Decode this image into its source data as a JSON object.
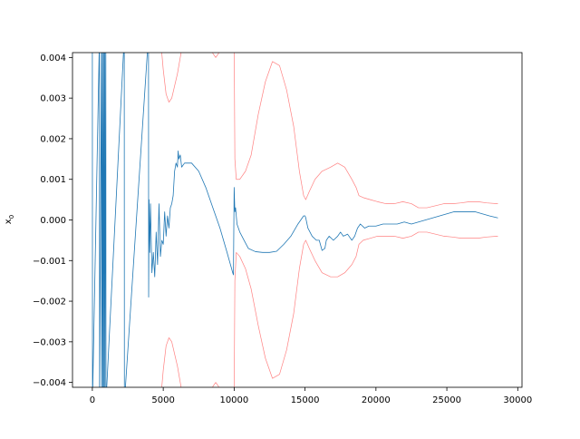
{
  "figure": {
    "background": "#ffffff"
  },
  "chart_data": {
    "type": "line",
    "title": "",
    "xlabel": "",
    "ylabel": "x",
    "ylabel_subscript": "0",
    "xlim": [
      -1400,
      30300
    ],
    "ylim": [
      -0.00412,
      0.00412
    ],
    "xticks": [
      0,
      5000,
      10000,
      15000,
      20000,
      25000,
      30000
    ],
    "xtick_labels": [
      "0",
      "5000",
      "10000",
      "15000",
      "20000",
      "25000",
      "30000"
    ],
    "yticks": [
      -0.004,
      -0.003,
      -0.002,
      -0.001,
      0.0,
      0.001,
      0.002,
      0.003,
      0.004
    ],
    "ytick_labels": [
      "−0.004",
      "−0.003",
      "−0.002",
      "−0.001",
      "0.000",
      "0.001",
      "0.002",
      "0.003",
      "0.004"
    ],
    "grid": false,
    "legend": "none",
    "series": [
      {
        "role": "estimate",
        "color": "#1f77b4",
        "points": [
          [
            0,
            0.0045
          ],
          [
            10,
            -0.0045
          ],
          [
            500,
            0.0045
          ],
          [
            510,
            -0.0045
          ],
          [
            650,
            0.0045
          ],
          [
            660,
            -0.0045
          ],
          [
            720,
            0.0045
          ],
          [
            730,
            -0.0045
          ],
          [
            800,
            0.0045
          ],
          [
            810,
            -0.0045
          ],
          [
            870,
            0.0045
          ],
          [
            880,
            -0.0045
          ],
          [
            950,
            0.0045
          ],
          [
            960,
            -0.0045
          ],
          [
            2250,
            0.0045
          ],
          [
            2260,
            -0.0045
          ],
          [
            3950,
            0.0045
          ],
          [
            3960,
            0.0045
          ],
          [
            3970,
            -0.0019
          ],
          [
            4000,
            0.0005
          ],
          [
            4050,
            -0.0008
          ],
          [
            4100,
            0.0004
          ],
          [
            4200,
            -0.0013
          ],
          [
            4300,
            -0.0008
          ],
          [
            4400,
            -0.0014
          ],
          [
            4500,
            -0.0003
          ],
          [
            4600,
            -0.0011
          ],
          [
            4700,
            0.0004
          ],
          [
            4800,
            -0.0009
          ],
          [
            4900,
            -0.0005
          ],
          [
            5000,
            -0.0006
          ],
          [
            5100,
            0.0002
          ],
          [
            5200,
            -0.0004
          ],
          [
            5300,
            0.0001
          ],
          [
            5400,
            -0.0002
          ],
          [
            5500,
            0.0003
          ],
          [
            5600,
            0.0004
          ],
          [
            5700,
            0.0006
          ],
          [
            5800,
            0.0012
          ],
          [
            5900,
            0.0014
          ],
          [
            6000,
            0.0013
          ],
          [
            6050,
            0.0017
          ],
          [
            6100,
            0.0015
          ],
          [
            6200,
            0.0016
          ],
          [
            6300,
            0.0013
          ],
          [
            6500,
            0.0014
          ],
          [
            7000,
            0.0014
          ],
          [
            7500,
            0.0012
          ],
          [
            8000,
            0.0008
          ],
          [
            8500,
            0.0003
          ],
          [
            9000,
            -0.0002
          ],
          [
            9500,
            -0.0008
          ],
          [
            9900,
            -0.0013
          ],
          [
            9950,
            -0.00135
          ],
          [
            10000,
            0.0008
          ],
          [
            10050,
            0.0002
          ],
          [
            10100,
            0.0003
          ],
          [
            10200,
            -0.0001
          ],
          [
            10400,
            -0.0003
          ],
          [
            10700,
            -0.0005
          ],
          [
            11000,
            -0.0007
          ],
          [
            11500,
            -0.00078
          ],
          [
            12000,
            -0.0008
          ],
          [
            12500,
            -0.0008
          ],
          [
            13000,
            -0.00077
          ],
          [
            13500,
            -0.0006
          ],
          [
            14000,
            -0.0004
          ],
          [
            14500,
            -0.0001
          ],
          [
            14900,
            0.0001
          ],
          [
            15000,
            0.0001
          ],
          [
            15050,
            5e-05
          ],
          [
            15200,
            -0.0002
          ],
          [
            15500,
            -0.0004
          ],
          [
            15800,
            -0.0005
          ],
          [
            16000,
            -0.0005
          ],
          [
            16200,
            -0.00075
          ],
          [
            16400,
            -0.0007
          ],
          [
            16500,
            -0.0005
          ],
          [
            16700,
            -0.0004
          ],
          [
            17000,
            -0.0005
          ],
          [
            17300,
            -0.0004
          ],
          [
            17500,
            -0.0003
          ],
          [
            17700,
            -0.0004
          ],
          [
            18000,
            -0.00035
          ],
          [
            18300,
            -0.0005
          ],
          [
            18500,
            -0.0004
          ],
          [
            18700,
            -0.0002
          ],
          [
            18900,
            -0.0001
          ],
          [
            19200,
            -0.0002
          ],
          [
            19500,
            -0.00015
          ],
          [
            20000,
            -0.00015
          ],
          [
            20500,
            -0.0001
          ],
          [
            21000,
            -0.0001
          ],
          [
            21500,
            -0.0001
          ],
          [
            22000,
            -5e-05
          ],
          [
            22500,
            -0.0001
          ],
          [
            23000,
            -5e-05
          ],
          [
            23500,
            0.0
          ],
          [
            24000,
            5e-05
          ],
          [
            24500,
            0.0001
          ],
          [
            25000,
            0.00015
          ],
          [
            25500,
            0.0002
          ],
          [
            26000,
            0.0002
          ],
          [
            26500,
            0.0002
          ],
          [
            27000,
            0.0002
          ],
          [
            27500,
            0.00015
          ],
          [
            28000,
            0.0001
          ],
          [
            28600,
            5e-05
          ]
        ]
      },
      {
        "role": "upper-bound",
        "color": "#ff8080",
        "points": [
          [
            4800,
            0.0045
          ],
          [
            5000,
            0.0037
          ],
          [
            5200,
            0.0031
          ],
          [
            5400,
            0.0029
          ],
          [
            5600,
            0.003
          ],
          [
            6000,
            0.0036
          ],
          [
            6400,
            0.0044
          ],
          [
            6600,
            0.0048
          ]
        ]
      },
      {
        "role": "upper-bound-b",
        "color": "#ff8080",
        "points": [
          [
            8200,
            0.0045
          ],
          [
            8500,
            0.0041
          ],
          [
            8700,
            0.004
          ],
          [
            8900,
            0.0041
          ],
          [
            9100,
            0.0045
          ]
        ]
      },
      {
        "role": "upper-bound-c",
        "color": "#ff8080",
        "points": [
          [
            10000,
            0.0045
          ],
          [
            10050,
            0.0015
          ],
          [
            10150,
            0.001
          ],
          [
            10400,
            0.001
          ],
          [
            10800,
            0.0012
          ],
          [
            11200,
            0.0016
          ],
          [
            11700,
            0.0026
          ],
          [
            12200,
            0.0034
          ],
          [
            12700,
            0.0039
          ],
          [
            13200,
            0.0038
          ],
          [
            13700,
            0.0032
          ],
          [
            14200,
            0.0023
          ],
          [
            14600,
            0.0012
          ],
          [
            14900,
            0.0006
          ],
          [
            15050,
            0.0005
          ],
          [
            15300,
            0.0007
          ],
          [
            15700,
            0.001
          ],
          [
            16200,
            0.0012
          ],
          [
            16800,
            0.0013
          ],
          [
            17300,
            0.0014
          ],
          [
            17800,
            0.0013
          ],
          [
            18300,
            0.001
          ],
          [
            18600,
            0.0008
          ],
          [
            18800,
            0.0006
          ],
          [
            19100,
            0.00055
          ],
          [
            19600,
            0.0005
          ],
          [
            20100,
            0.00045
          ],
          [
            20700,
            0.0004
          ],
          [
            21300,
            0.0004
          ],
          [
            21900,
            0.00045
          ],
          [
            22500,
            0.0004
          ],
          [
            23000,
            0.0003
          ],
          [
            23600,
            0.0003
          ],
          [
            24200,
            0.00035
          ],
          [
            24800,
            0.0004
          ],
          [
            25400,
            0.0004
          ],
          [
            26000,
            0.00042
          ],
          [
            26600,
            0.00045
          ],
          [
            27200,
            0.00045
          ],
          [
            27800,
            0.00042
          ],
          [
            28600,
            0.0004
          ]
        ]
      },
      {
        "role": "lower-bound",
        "color": "#ff8080",
        "points": [
          [
            4800,
            -0.0045
          ],
          [
            5000,
            -0.0037
          ],
          [
            5200,
            -0.0031
          ],
          [
            5400,
            -0.0029
          ],
          [
            5600,
            -0.003
          ],
          [
            6000,
            -0.0036
          ],
          [
            6400,
            -0.0044
          ],
          [
            6600,
            -0.0048
          ]
        ]
      },
      {
        "role": "lower-bound-b",
        "color": "#ff8080",
        "points": [
          [
            8200,
            -0.0045
          ],
          [
            8500,
            -0.0041
          ],
          [
            8700,
            -0.004
          ],
          [
            8900,
            -0.0041
          ],
          [
            9100,
            -0.0045
          ]
        ]
      },
      {
        "role": "lower-bound-c",
        "color": "#ff8080",
        "points": [
          [
            10000,
            -0.0045
          ],
          [
            10050,
            -0.0015
          ],
          [
            10150,
            -0.0008
          ],
          [
            10400,
            -0.0009
          ],
          [
            10800,
            -0.0012
          ],
          [
            11200,
            -0.0017
          ],
          [
            11700,
            -0.0026
          ],
          [
            12200,
            -0.0034
          ],
          [
            12700,
            -0.0039
          ],
          [
            13200,
            -0.0038
          ],
          [
            13700,
            -0.0032
          ],
          [
            14200,
            -0.0023
          ],
          [
            14600,
            -0.0012
          ],
          [
            14900,
            -0.0006
          ],
          [
            15050,
            -0.0005
          ],
          [
            15300,
            -0.0007
          ],
          [
            15700,
            -0.001
          ],
          [
            16200,
            -0.0013
          ],
          [
            16800,
            -0.0014
          ],
          [
            17300,
            -0.0014
          ],
          [
            17800,
            -0.0013
          ],
          [
            18300,
            -0.0011
          ],
          [
            18600,
            -0.0009
          ],
          [
            18800,
            -0.0006
          ],
          [
            19100,
            -0.0005
          ],
          [
            19600,
            -0.00045
          ],
          [
            20100,
            -0.0004
          ],
          [
            20700,
            -0.0004
          ],
          [
            21300,
            -0.0004
          ],
          [
            21900,
            -0.00045
          ],
          [
            22500,
            -0.0004
          ],
          [
            23000,
            -0.0003
          ],
          [
            23600,
            -0.0003
          ],
          [
            24200,
            -0.00035
          ],
          [
            24800,
            -0.0004
          ],
          [
            25400,
            -0.00042
          ],
          [
            26000,
            -0.00045
          ],
          [
            26600,
            -0.00045
          ],
          [
            27200,
            -0.00045
          ],
          [
            27800,
            -0.00042
          ],
          [
            28600,
            -0.0004
          ]
        ]
      }
    ]
  }
}
